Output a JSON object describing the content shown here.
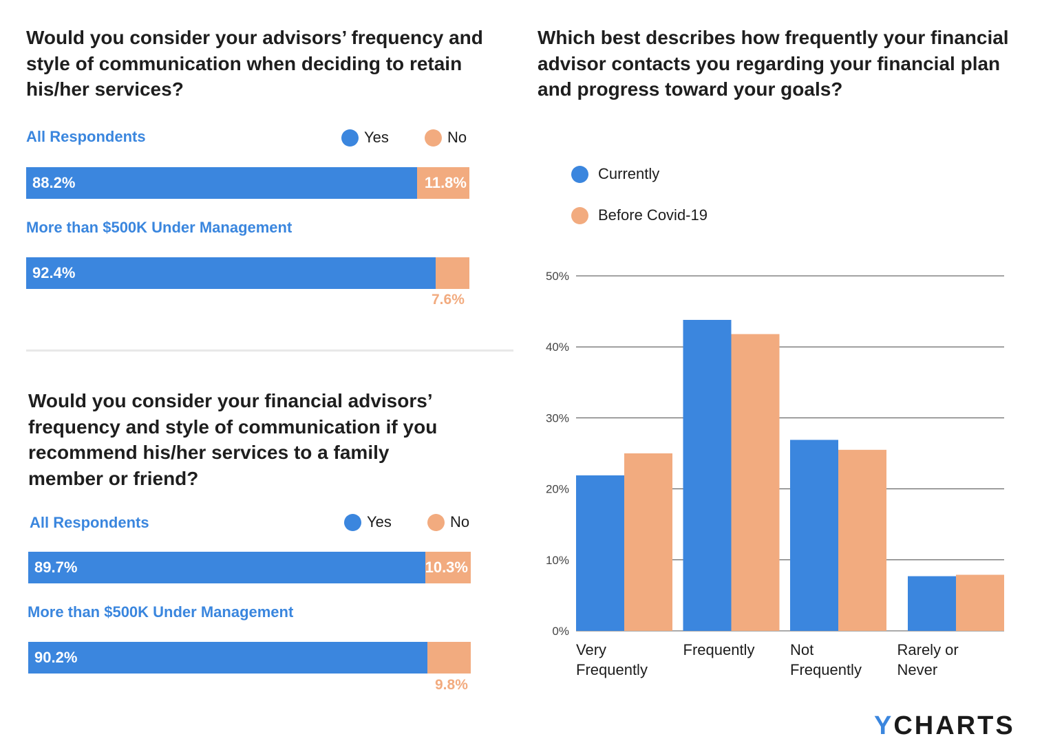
{
  "colors": {
    "yes": "#3b86de",
    "no": "#f2ab7f",
    "currently": "#3b86de",
    "before": "#f2ab7f"
  },
  "panel1": {
    "question": "Would you consider your advisors’ frequency and style of communication when deciding to retain his/her services?",
    "legend": {
      "yes": "Yes",
      "no": "No"
    },
    "groups": [
      {
        "label": "All Respondents",
        "yes": 88.2,
        "no": 11.8,
        "yes_label": "88.2%",
        "no_label": "11.8%"
      },
      {
        "label": "More than $500K Under Management",
        "yes": 92.4,
        "no": 7.6,
        "yes_label": "92.4%",
        "no_label": "7.6%"
      }
    ]
  },
  "panel2": {
    "question": "Would you consider your financial advisors’ frequency and style of communication if you recommend his/her services to a family member or friend?",
    "legend": {
      "yes": "Yes",
      "no": "No"
    },
    "groups": [
      {
        "label": "All Respondents",
        "yes": 89.7,
        "no": 10.3,
        "yes_label": "89.7%",
        "no_label": "10.3%"
      },
      {
        "label": "More than $500K Under Management",
        "yes": 90.2,
        "no": 9.8,
        "yes_label": "90.2%",
        "no_label": "9.8%"
      }
    ]
  },
  "chart_data": {
    "type": "bar",
    "title": "Which best describes how frequently your financial advisor contacts you regarding your financial plan and progress toward your goals?",
    "categories": [
      [
        "Very",
        "Frequently"
      ],
      [
        "Frequently"
      ],
      [
        "Not",
        "Frequently"
      ],
      [
        "Rarely or",
        "Never"
      ]
    ],
    "series": [
      {
        "name": "Currently",
        "values": [
          21.9,
          43.8,
          26.9,
          7.7
        ]
      },
      {
        "name": "Before Covid-19",
        "values": [
          25.0,
          41.8,
          25.5,
          7.9
        ]
      }
    ],
    "ylim": [
      0,
      50
    ],
    "yticks": [
      "0%",
      "10%",
      "20%",
      "30%",
      "40%",
      "50%"
    ],
    "grid": true,
    "legend_placement": "top-left"
  },
  "logo": {
    "accent": "Y",
    "rest": "CHARTS"
  }
}
